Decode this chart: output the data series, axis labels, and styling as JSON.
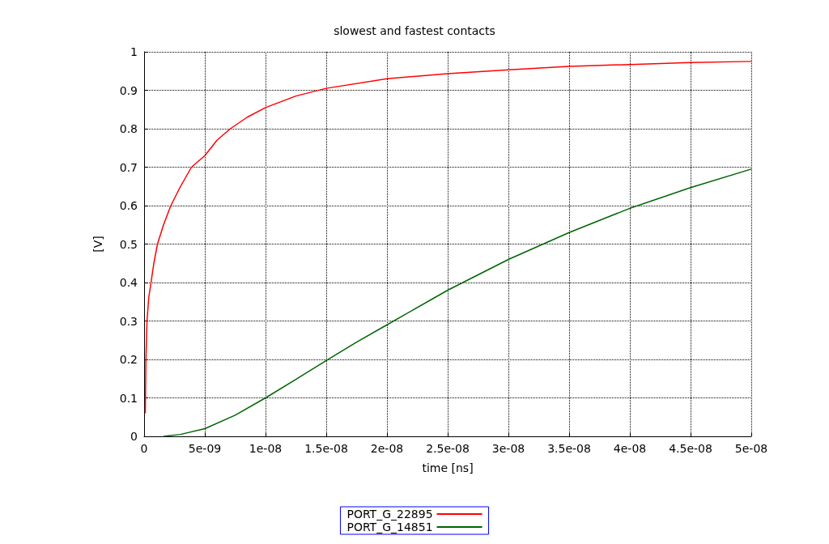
{
  "chart_data": {
    "type": "line",
    "title": "slowest and fastest contacts",
    "xlabel": "time [ns]",
    "ylabel": "[V]",
    "series": [
      {
        "name": "PORT_G_22895",
        "color": "#ff0000",
        "x": [
          1e-10,
          1.5e-10,
          2.4e-10,
          3.8e-10,
          5.7e-10,
          8e-10,
          1.1e-09,
          1.6e-09,
          2.2e-09,
          3e-09,
          3.9e-09,
          5e-09,
          6e-09,
          7.1e-09,
          8.5e-09,
          1e-08,
          1.25e-08,
          1.5e-08,
          2e-08,
          2.5e-08,
          3e-08,
          3.5e-08,
          4e-08,
          4.5e-08,
          5e-08
        ],
        "values": [
          0.06,
          0.2,
          0.3,
          0.36,
          0.4,
          0.45,
          0.5,
          0.55,
          0.6,
          0.65,
          0.7,
          0.73,
          0.77,
          0.8,
          0.83,
          0.855,
          0.885,
          0.905,
          0.93,
          0.943,
          0.953,
          0.962,
          0.967,
          0.972,
          0.975
        ]
      },
      {
        "name": "PORT_G_14851",
        "color": "#006400",
        "x": [
          1.6e-09,
          3e-09,
          5e-09,
          7.5e-09,
          1e-08,
          1.25e-08,
          1.5e-08,
          1.75e-08,
          2e-08,
          2.5e-08,
          3e-08,
          3.5e-08,
          4e-08,
          4.5e-08,
          5e-08
        ],
        "values": [
          0,
          0.005,
          0.02,
          0.055,
          0.1,
          0.148,
          0.197,
          0.245,
          0.29,
          0.38,
          0.46,
          0.53,
          0.593,
          0.647,
          0.695
        ]
      }
    ],
    "xlim": [
      0,
      5e-08
    ],
    "xticks": [
      0,
      {
        "value": 5e-09,
        "label": "5e-09"
      },
      {
        "value": 1e-08,
        "label": "1e-08"
      },
      {
        "value": 1.5e-08,
        "label": "1.5e-08"
      },
      {
        "value": 2e-08,
        "label": "2e-08"
      },
      {
        "value": 2.5e-08,
        "label": "2.5e-08"
      },
      {
        "value": 3e-08,
        "label": "3e-08"
      },
      {
        "value": 3.5e-08,
        "label": "3.5e-08"
      },
      {
        "value": 4e-08,
        "label": "4e-08"
      },
      {
        "value": 4.5e-08,
        "label": "4.5e-08"
      },
      {
        "value": 5e-08,
        "label": "5e-08"
      }
    ],
    "ylim": [
      0,
      1
    ],
    "yticks": [
      0,
      0.1,
      0.2,
      0.3,
      0.4,
      0.5,
      0.6,
      0.7,
      0.8,
      0.9,
      1
    ],
    "grid": true,
    "legend": "bottom",
    "line_style": "solid",
    "marker": "none"
  }
}
